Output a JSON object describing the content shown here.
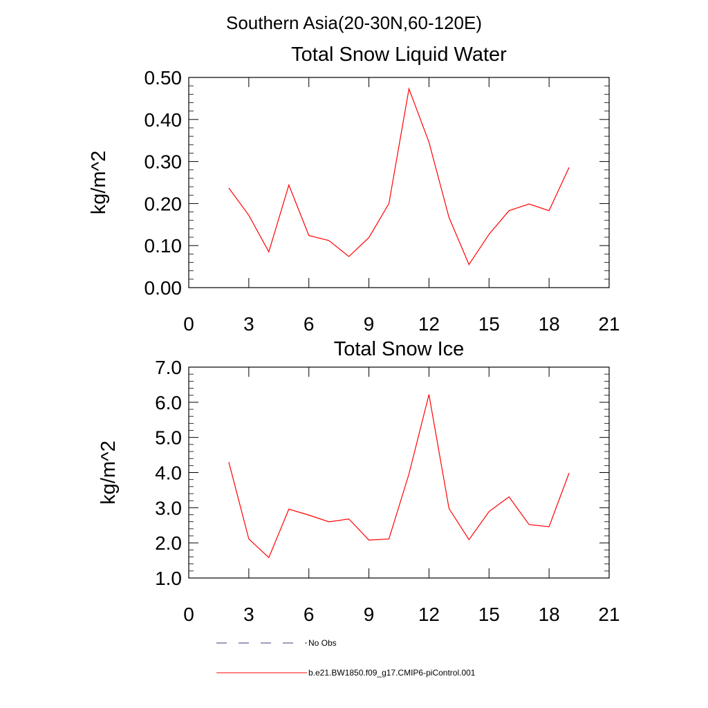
{
  "figure": {
    "title": "Southern Asia(20-30N,60-120E)"
  },
  "chart_data": [
    {
      "type": "line",
      "title": "Total Snow Liquid Water",
      "xlabel": "",
      "ylabel": "kg/m^2",
      "xlim": [
        0,
        21
      ],
      "ylim": [
        0,
        0.5
      ],
      "xticks": [
        0,
        3,
        6,
        9,
        12,
        15,
        18,
        21
      ],
      "xtick_labels": [
        "0",
        "3",
        "6",
        "9",
        "12",
        "15",
        "18",
        "21"
      ],
      "yticks": [
        0,
        0.1,
        0.2,
        0.3,
        0.4,
        0.5
      ],
      "ytick_labels": [
        "0.00",
        "0.10",
        "0.20",
        "0.30",
        "0.40",
        "0.50"
      ],
      "grid": false,
      "series": [
        {
          "name": "b.e21.BW1850.f09_g17.CMIP6-piControl.001",
          "color": "#ff0000",
          "x": [
            2,
            3,
            4,
            5,
            6,
            7,
            8,
            9,
            10,
            11,
            12,
            13,
            14,
            15,
            16,
            17,
            18,
            19
          ],
          "y": [
            0.237,
            0.172,
            0.085,
            0.244,
            0.124,
            0.112,
            0.074,
            0.119,
            0.2,
            0.473,
            0.346,
            0.167,
            0.055,
            0.127,
            0.183,
            0.199,
            0.183,
            0.286
          ]
        }
      ]
    },
    {
      "type": "line",
      "title": "Total Snow Ice",
      "xlabel": "",
      "ylabel": "kg/m^2",
      "xlim": [
        0,
        21
      ],
      "ylim": [
        1,
        7
      ],
      "xticks": [
        0,
        3,
        6,
        9,
        12,
        15,
        18,
        21
      ],
      "xtick_labels": [
        "0",
        "3",
        "6",
        "9",
        "12",
        "15",
        "18",
        "21"
      ],
      "yticks": [
        1,
        2,
        3,
        4,
        5,
        6,
        7
      ],
      "ytick_labels": [
        "1.0",
        "2.0",
        "3.0",
        "4.0",
        "5.0",
        "6.0",
        "7.0"
      ],
      "grid": false,
      "series": [
        {
          "name": "b.e21.BW1850.f09_g17.CMIP6-piControl.001",
          "color": "#ff0000",
          "x": [
            2,
            3,
            4,
            5,
            6,
            7,
            8,
            9,
            10,
            11,
            12,
            13,
            14,
            15,
            16,
            17,
            18,
            19
          ],
          "y": [
            4.3,
            2.11,
            1.58,
            2.96,
            2.79,
            2.6,
            2.68,
            2.08,
            2.11,
            3.96,
            6.22,
            2.98,
            2.09,
            2.89,
            3.31,
            2.52,
            2.46,
            3.99
          ]
        }
      ]
    }
  ],
  "legend": {
    "placement": "bottom-left",
    "entries": [
      {
        "label": "No Obs",
        "color": "#3a3a7a",
        "style": "dashed"
      },
      {
        "label": "b.e21.BW1850.f09_g17.CMIP6-piControl.001",
        "color": "#ff0000",
        "style": "solid"
      }
    ]
  }
}
